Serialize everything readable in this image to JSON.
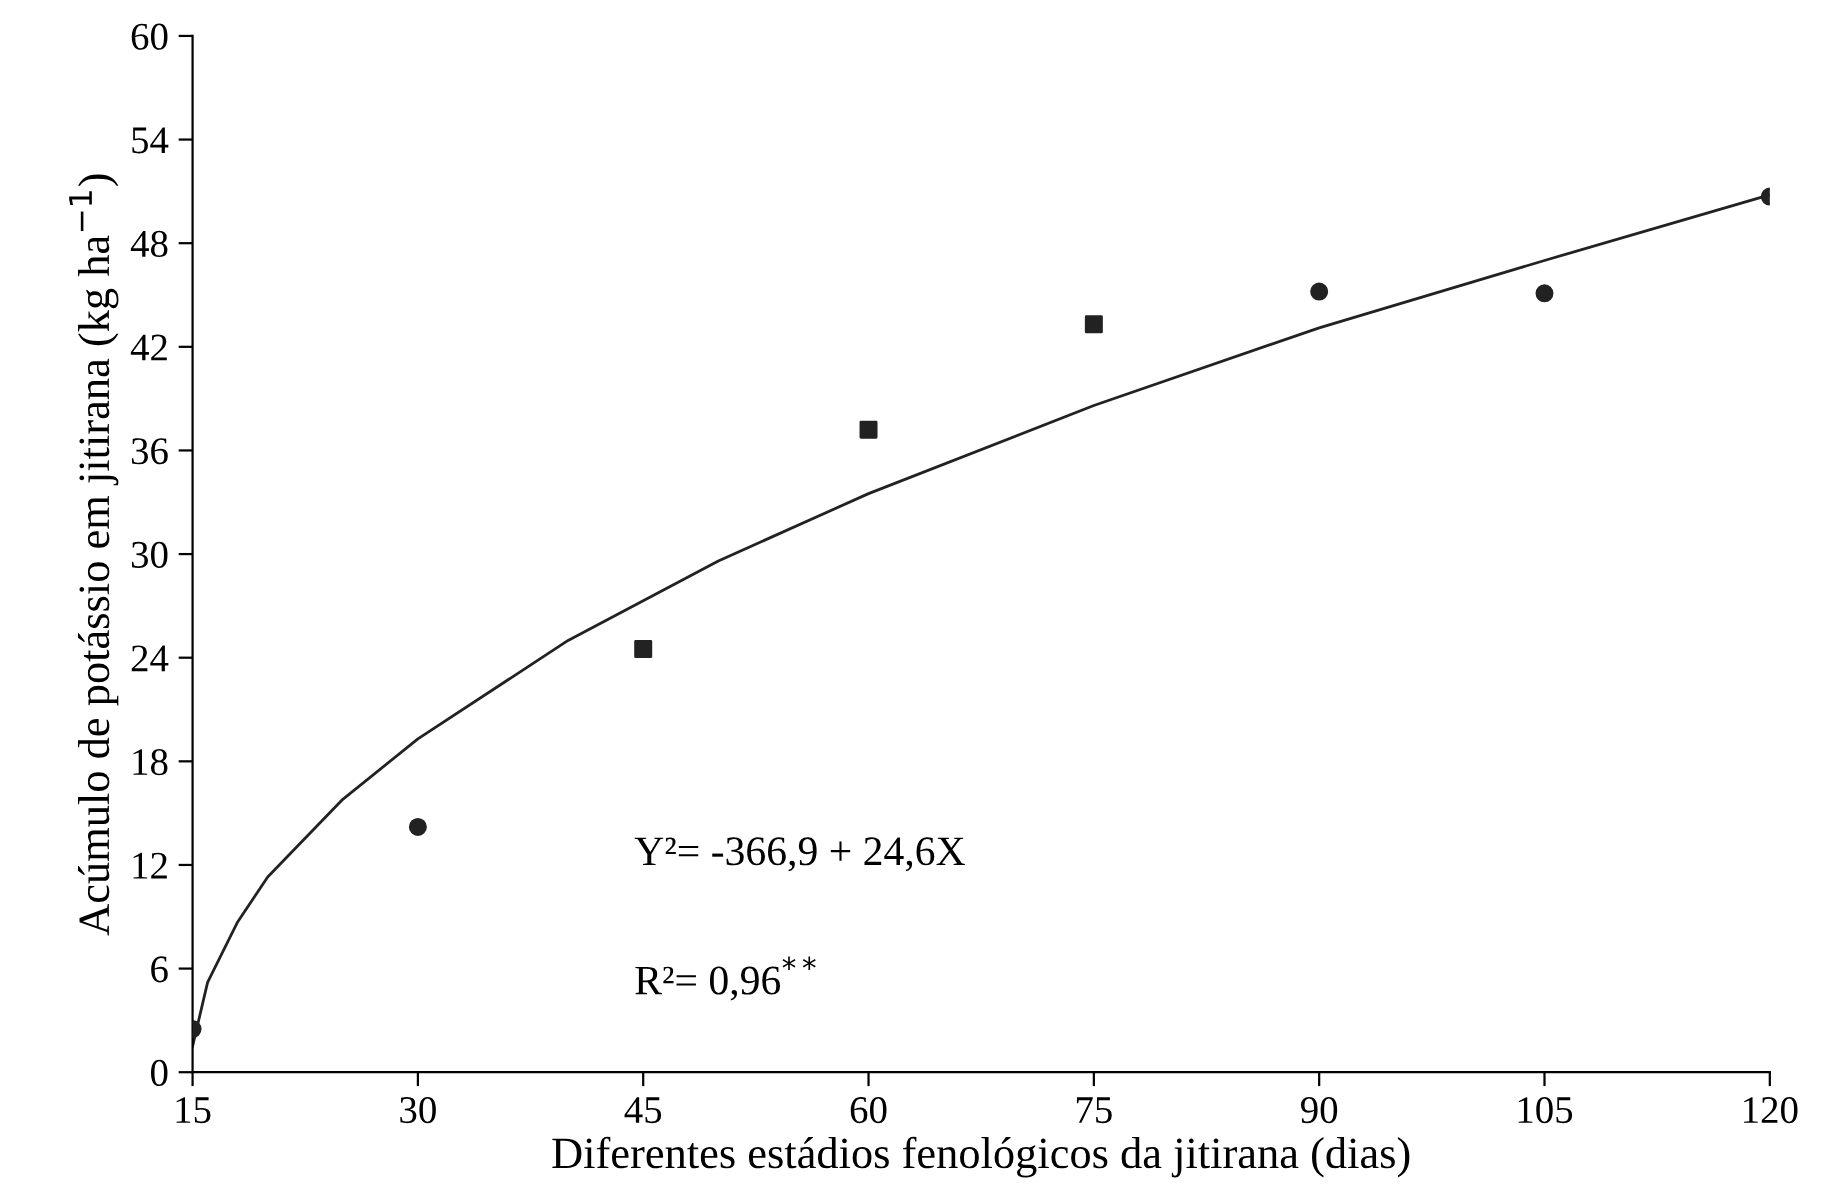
{
  "chart_data": {
    "type": "scatter",
    "xlabel": "Diferentes estádios fenológicos da jitirana (dias)",
    "ylabel": "Acúmulo de potássio em jitirana (kg ha$^{−1}$)",
    "series": [
      {
        "marker": "circle",
        "color": "#222222",
        "x": [
          15,
          30,
          90,
          105,
          120
        ],
        "values": [
          2.5,
          14.2,
          45.2,
          45.1,
          50.7
        ]
      },
      {
        "marker": "square",
        "color": "#222222",
        "x": [
          45,
          60,
          75
        ],
        "values": [
          24.5,
          37.2,
          43.3
        ]
      },
      {
        "type": "line",
        "marker": "none",
        "line_style": "solid",
        "color": "#222222",
        "x": [
          15,
          16,
          18,
          20,
          25,
          30,
          40,
          50,
          60,
          75,
          90,
          105,
          120
        ],
        "values": [
          1.5,
          5.2,
          8.7,
          11.3,
          15.8,
          19.3,
          25.0,
          29.6,
          33.5,
          38.6,
          43.1,
          47.0,
          50.8
        ]
      }
    ],
    "annotations": [
      "Y²= -366,9 + 24,6X",
      "R²= 0,96$^{**}$"
    ],
    "xlim": [
      15,
      120
    ],
    "xticks": [
      15,
      30,
      45,
      60,
      75,
      90,
      105,
      120
    ],
    "ylim": [
      0,
      60
    ],
    "yticks": [
      0,
      6,
      12,
      18,
      24,
      30,
      36,
      42,
      48,
      54,
      60
    ],
    "grid": false,
    "legend": false
  }
}
